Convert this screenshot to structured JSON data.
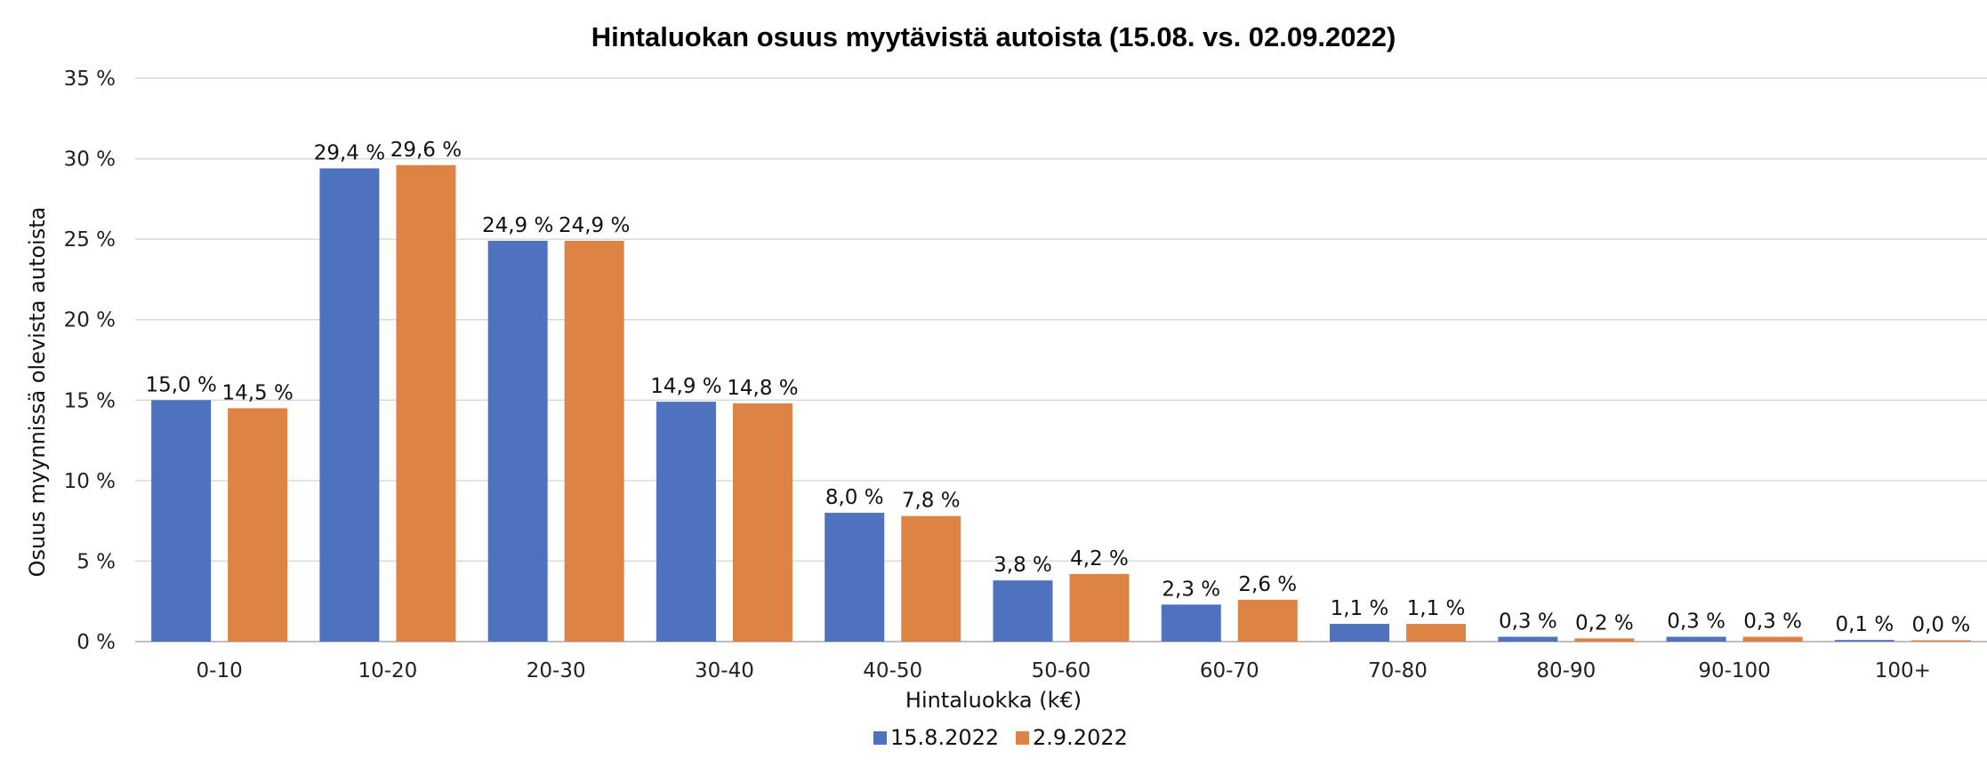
{
  "chart_data": {
    "type": "bar",
    "title": "Hintaluokan osuus myytävistä autoista (15.08. vs. 02.09.2022)",
    "xlabel": "Hintaluokka (k€)",
    "ylabel": "Osuus myynnissä olevista autoista",
    "ylim": [
      0,
      35
    ],
    "yticks": [
      0,
      5,
      10,
      15,
      20,
      25,
      30,
      35
    ],
    "ytick_labels": [
      "0 %",
      "5 %",
      "10 %",
      "15 %",
      "20 %",
      "25 %",
      "30 %",
      "35 %"
    ],
    "grid": true,
    "legend_position": "bottom",
    "categories": [
      "0-10",
      "10-20",
      "20-30",
      "30-40",
      "40-50",
      "50-60",
      "60-70",
      "70-80",
      "80-90",
      "90-100",
      "100+"
    ],
    "series": [
      {
        "name": "15.8.2022",
        "color": "#4e72be",
        "values": [
          15.0,
          29.4,
          24.9,
          14.9,
          8.0,
          3.8,
          2.3,
          1.1,
          0.3,
          0.3,
          0.1
        ],
        "labels": [
          "15,0 %",
          "29,4 %",
          "24,9 %",
          "14,9 %",
          "8,0 %",
          "3,8 %",
          "2,3 %",
          "1,1 %",
          "0,3 %",
          "0,3 %",
          "0,1 %"
        ]
      },
      {
        "name": "2.9.2022",
        "color": "#dd8344",
        "values": [
          14.5,
          29.6,
          24.9,
          14.8,
          7.8,
          4.2,
          2.6,
          1.1,
          0.2,
          0.3,
          0.0
        ],
        "labels": [
          "14,5 %",
          "29,6 %",
          "24,9 %",
          "14,8 %",
          "7,8 %",
          "4,2 %",
          "2,6 %",
          "1,1 %",
          "0,2 %",
          "0,3 %",
          "0,0 %"
        ]
      }
    ]
  }
}
